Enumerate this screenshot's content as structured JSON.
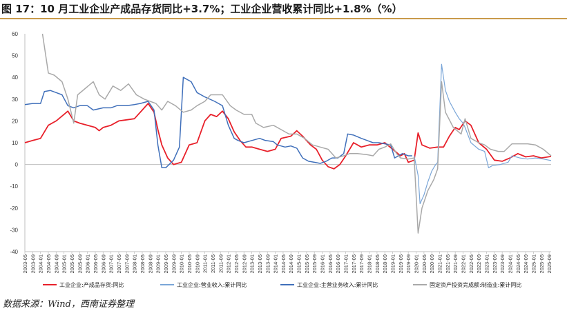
{
  "title": "图 17：10 月工业企业产成品存货同比+3.7%；工业企业营收累计同比+1.8%（%）",
  "source": "数据来源：Wind，西南证券整理",
  "chart_data": {
    "type": "line",
    "title": "图 17：10 月工业企业产成品存货同比+3.7%；工业企业营收累计同比+1.8%（%）",
    "xlabel": "",
    "ylabel": "%",
    "ylim": [
      -40,
      60
    ],
    "y_ticks": [
      60,
      50,
      40,
      30,
      20,
      10,
      0,
      -10,
      -20,
      -30,
      -40
    ],
    "x_tick_labels": [
      "2003-05",
      "2003-09",
      "2004-01",
      "2004-05",
      "2004-09",
      "2005-01",
      "2005-05",
      "2005-09",
      "2006-01",
      "2006-05",
      "2006-09",
      "2007-01",
      "2007-05",
      "2007-09",
      "2008-01",
      "2008-05",
      "2008-09",
      "2009-01",
      "2009-05",
      "2009-09",
      "2010-01",
      "2010-05",
      "2010-09",
      "2011-01",
      "2011-05",
      "2011-09",
      "2012-01",
      "2012-05",
      "2012-09",
      "2013-01",
      "2013-05",
      "2013-09",
      "2014-01",
      "2014-05",
      "2014-09",
      "2015-01",
      "2015-05",
      "2015-09",
      "2016-01",
      "2016-05",
      "2016-09",
      "2017-01",
      "2017-05",
      "2017-09",
      "2018-01",
      "2018-05",
      "2018-09",
      "2019-01",
      "2019-05",
      "2019-09",
      "2020-01",
      "2020-05",
      "2020-09",
      "2021-01",
      "2021-05",
      "2021-09",
      "2022-01",
      "2022-05",
      "2022-09",
      "2023-01",
      "2023-05",
      "2023-09",
      "2024-01",
      "2024-05",
      "2024-09",
      "2025-01",
      "2025-05",
      "2025-09"
    ],
    "series": [
      {
        "name": "工业企业:产成品存货:同比",
        "color": "#e8202a",
        "width": 1.8,
        "points": [
          [
            "2003-05",
            10
          ],
          [
            "2003-09",
            11
          ],
          [
            "2004-01",
            12
          ],
          [
            "2004-05",
            18
          ],
          [
            "2004-09",
            20
          ],
          [
            "2005-01",
            23
          ],
          [
            "2005-03",
            24.5
          ],
          [
            "2005-06",
            20
          ],
          [
            "2005-09",
            19
          ],
          [
            "2006-01",
            18
          ],
          [
            "2006-05",
            17
          ],
          [
            "2006-07",
            15.5
          ],
          [
            "2006-09",
            17
          ],
          [
            "2007-01",
            18
          ],
          [
            "2007-05",
            20
          ],
          [
            "2007-09",
            20.5
          ],
          [
            "2008-01",
            21
          ],
          [
            "2008-05",
            25
          ],
          [
            "2008-08",
            28
          ],
          [
            "2008-11",
            24
          ],
          [
            "2009-01",
            16
          ],
          [
            "2009-03",
            9
          ],
          [
            "2009-06",
            3
          ],
          [
            "2009-09",
            0
          ],
          [
            "2010-01",
            1
          ],
          [
            "2010-05",
            9
          ],
          [
            "2010-09",
            10
          ],
          [
            "2011-01",
            20
          ],
          [
            "2011-04",
            23
          ],
          [
            "2011-07",
            22
          ],
          [
            "2011-10",
            24.5
          ],
          [
            "2012-01",
            21
          ],
          [
            "2012-04",
            15
          ],
          [
            "2012-07",
            11
          ],
          [
            "2012-10",
            8
          ],
          [
            "2013-01",
            8
          ],
          [
            "2013-05",
            7
          ],
          [
            "2013-09",
            6
          ],
          [
            "2014-01",
            7
          ],
          [
            "2014-04",
            12
          ],
          [
            "2014-09",
            13
          ],
          [
            "2014-12",
            15.5
          ],
          [
            "2015-03",
            13
          ],
          [
            "2015-07",
            9
          ],
          [
            "2015-10",
            7
          ],
          [
            "2016-01",
            2
          ],
          [
            "2016-04",
            -1
          ],
          [
            "2016-07",
            -2
          ],
          [
            "2016-10",
            0
          ],
          [
            "2017-01",
            4
          ],
          [
            "2017-05",
            10
          ],
          [
            "2017-09",
            8
          ],
          [
            "2018-01",
            9
          ],
          [
            "2018-05",
            9
          ],
          [
            "2018-09",
            10
          ],
          [
            "2019-01",
            7
          ],
          [
            "2019-05",
            4
          ],
          [
            "2019-07",
            5
          ],
          [
            "2019-09",
            1
          ],
          [
            "2019-12",
            2
          ],
          [
            "2020-02",
            14.5
          ],
          [
            "2020-04",
            9
          ],
          [
            "2020-08",
            7.5
          ],
          [
            "2020-12",
            8
          ],
          [
            "2021-03",
            8
          ],
          [
            "2021-06",
            13
          ],
          [
            "2021-09",
            17
          ],
          [
            "2021-11",
            16
          ],
          [
            "2022-02",
            20
          ],
          [
            "2022-05",
            18
          ],
          [
            "2022-09",
            10
          ],
          [
            "2023-01",
            7
          ],
          [
            "2023-05",
            2
          ],
          [
            "2023-09",
            1.5
          ],
          [
            "2024-01",
            3
          ],
          [
            "2024-05",
            5
          ],
          [
            "2024-09",
            3.5
          ],
          [
            "2025-01",
            4
          ],
          [
            "2025-05",
            3
          ],
          [
            "2025-10",
            3.7
          ]
        ]
      },
      {
        "name": "工业企业:营业收入:累计同比",
        "color": "#7aa6d8",
        "width": 1.2,
        "points": [
          [
            "2019-12",
            4
          ],
          [
            "2020-02",
            -5
          ],
          [
            "2020-03",
            -18
          ],
          [
            "2020-05",
            -14
          ],
          [
            "2020-07",
            -8
          ],
          [
            "2020-09",
            -3
          ],
          [
            "2020-11",
            0
          ],
          [
            "2020-12",
            1
          ],
          [
            "2021-02",
            46
          ],
          [
            "2021-04",
            34
          ],
          [
            "2021-06",
            29
          ],
          [
            "2021-09",
            24
          ],
          [
            "2021-11",
            21
          ],
          [
            "2022-01",
            19
          ],
          [
            "2022-02",
            17
          ],
          [
            "2022-05",
            10
          ],
          [
            "2022-09",
            7
          ],
          [
            "2022-12",
            6
          ],
          [
            "2023-02",
            -1.5
          ],
          [
            "2023-04",
            -0.5
          ],
          [
            "2023-08",
            0
          ],
          [
            "2023-12",
            1
          ],
          [
            "2024-02",
            4
          ],
          [
            "2024-06",
            3
          ],
          [
            "2024-10",
            2.5
          ],
          [
            "2025-02",
            3
          ],
          [
            "2025-06",
            2.5
          ],
          [
            "2025-10",
            1.8
          ]
        ]
      },
      {
        "name": "工业企业:主营业务收入:累计同比",
        "color": "#3f6fba",
        "width": 1.5,
        "points": [
          [
            "2003-05",
            27.5
          ],
          [
            "2003-09",
            28
          ],
          [
            "2004-01",
            28
          ],
          [
            "2004-03",
            33.5
          ],
          [
            "2004-06",
            34
          ],
          [
            "2004-09",
            33
          ],
          [
            "2004-12",
            32
          ],
          [
            "2005-03",
            27
          ],
          [
            "2005-06",
            26
          ],
          [
            "2005-09",
            27
          ],
          [
            "2006-01",
            27
          ],
          [
            "2006-04",
            25
          ],
          [
            "2006-09",
            26
          ],
          [
            "2007-01",
            26
          ],
          [
            "2007-04",
            27
          ],
          [
            "2007-09",
            27
          ],
          [
            "2008-01",
            27.5
          ],
          [
            "2008-04",
            28
          ],
          [
            "2008-08",
            29
          ],
          [
            "2008-11",
            25
          ],
          [
            "2009-01",
            9
          ],
          [
            "2009-03",
            -1.5
          ],
          [
            "2009-05",
            -1.5
          ],
          [
            "2009-09",
            2
          ],
          [
            "2009-12",
            8
          ],
          [
            "2010-02",
            40
          ],
          [
            "2010-06",
            38
          ],
          [
            "2010-09",
            33
          ],
          [
            "2011-01",
            31
          ],
          [
            "2011-06",
            29
          ],
          [
            "2011-08",
            28
          ],
          [
            "2011-10",
            27
          ],
          [
            "2012-01",
            18
          ],
          [
            "2012-04",
            12
          ],
          [
            "2012-06",
            11
          ],
          [
            "2012-09",
            10
          ],
          [
            "2013-01",
            11
          ],
          [
            "2013-05",
            12
          ],
          [
            "2013-08",
            11
          ],
          [
            "2013-12",
            10.5
          ],
          [
            "2014-02",
            9
          ],
          [
            "2014-06",
            8
          ],
          [
            "2014-09",
            8.5
          ],
          [
            "2014-12",
            7.5
          ],
          [
            "2015-03",
            3
          ],
          [
            "2015-06",
            1.5
          ],
          [
            "2015-09",
            1
          ],
          [
            "2015-12",
            0.5
          ],
          [
            "2016-03",
            1.5
          ],
          [
            "2016-06",
            3
          ],
          [
            "2016-09",
            3
          ],
          [
            "2016-12",
            5
          ],
          [
            "2017-02",
            14
          ],
          [
            "2017-05",
            13.5
          ],
          [
            "2017-09",
            12
          ],
          [
            "2017-12",
            11
          ],
          [
            "2018-03",
            10
          ],
          [
            "2018-06",
            10
          ],
          [
            "2018-09",
            9.5
          ],
          [
            "2018-12",
            9
          ],
          [
            "2019-02",
            3
          ],
          [
            "2019-06",
            5
          ],
          [
            "2019-09",
            4
          ],
          [
            "2019-11",
            4
          ]
        ]
      },
      {
        "name": "固定资产投资完成额:制造业:累计同比",
        "color": "#a9a9a9",
        "width": 1.5,
        "points": [
          [
            "2004-02",
            60
          ],
          [
            "2004-05",
            42
          ],
          [
            "2004-08",
            41
          ],
          [
            "2004-12",
            38
          ],
          [
            "2005-03",
            30
          ],
          [
            "2005-06",
            19
          ],
          [
            "2005-08",
            32
          ],
          [
            "2005-12",
            35
          ],
          [
            "2006-04",
            38
          ],
          [
            "2006-07",
            32
          ],
          [
            "2006-10",
            30
          ],
          [
            "2007-02",
            36
          ],
          [
            "2007-06",
            34
          ],
          [
            "2007-10",
            37
          ],
          [
            "2008-02",
            32
          ],
          [
            "2008-06",
            30
          ],
          [
            "2008-09",
            29
          ],
          [
            "2008-12",
            28
          ],
          [
            "2009-03",
            25
          ],
          [
            "2009-06",
            29
          ],
          [
            "2009-10",
            27
          ],
          [
            "2010-02",
            24
          ],
          [
            "2010-06",
            25
          ],
          [
            "2010-09",
            27
          ],
          [
            "2011-01",
            29
          ],
          [
            "2011-04",
            32
          ],
          [
            "2011-10",
            32
          ],
          [
            "2012-02",
            27
          ],
          [
            "2012-05",
            25
          ],
          [
            "2012-09",
            23
          ],
          [
            "2013-01",
            23
          ],
          [
            "2013-03",
            19
          ],
          [
            "2013-07",
            17
          ],
          [
            "2013-12",
            18
          ],
          [
            "2014-04",
            16
          ],
          [
            "2014-08",
            14
          ],
          [
            "2014-12",
            14
          ],
          [
            "2015-04",
            12
          ],
          [
            "2015-08",
            9
          ],
          [
            "2015-12",
            8
          ],
          [
            "2016-04",
            7
          ],
          [
            "2016-08",
            3
          ],
          [
            "2016-12",
            4
          ],
          [
            "2017-03",
            5
          ],
          [
            "2017-07",
            5
          ],
          [
            "2017-12",
            4.5
          ],
          [
            "2018-03",
            4
          ],
          [
            "2018-06",
            7
          ],
          [
            "2018-09",
            8
          ],
          [
            "2018-12",
            9.5
          ],
          [
            "2019-03",
            5
          ],
          [
            "2019-05",
            3
          ],
          [
            "2019-09",
            2.5
          ],
          [
            "2019-12",
            3
          ],
          [
            "2020-02",
            -31.5
          ],
          [
            "2020-04",
            -20
          ],
          [
            "2020-07",
            -12
          ],
          [
            "2020-10",
            -7
          ],
          [
            "2020-12",
            -2
          ],
          [
            "2021-02",
            38
          ],
          [
            "2021-04",
            24
          ],
          [
            "2021-08",
            17
          ],
          [
            "2021-12",
            14
          ],
          [
            "2022-02",
            21
          ],
          [
            "2022-05",
            12
          ],
          [
            "2022-09",
            10
          ],
          [
            "2022-12",
            9
          ],
          [
            "2023-03",
            7
          ],
          [
            "2023-07",
            6
          ],
          [
            "2023-10",
            6
          ],
          [
            "2024-02",
            9.5
          ],
          [
            "2024-06",
            9.5
          ],
          [
            "2024-10",
            9.5
          ],
          [
            "2025-02",
            9
          ],
          [
            "2025-06",
            7
          ],
          [
            "2025-10",
            4
          ]
        ]
      }
    ],
    "legend": [
      "工业企业:产成品存货:同比",
      "工业企业:营业收入:累计同比",
      "工业企业:主营业务收入:累计同比",
      "固定资产投资完成额:制造业:累计同比"
    ],
    "legend_position": "bottom"
  }
}
